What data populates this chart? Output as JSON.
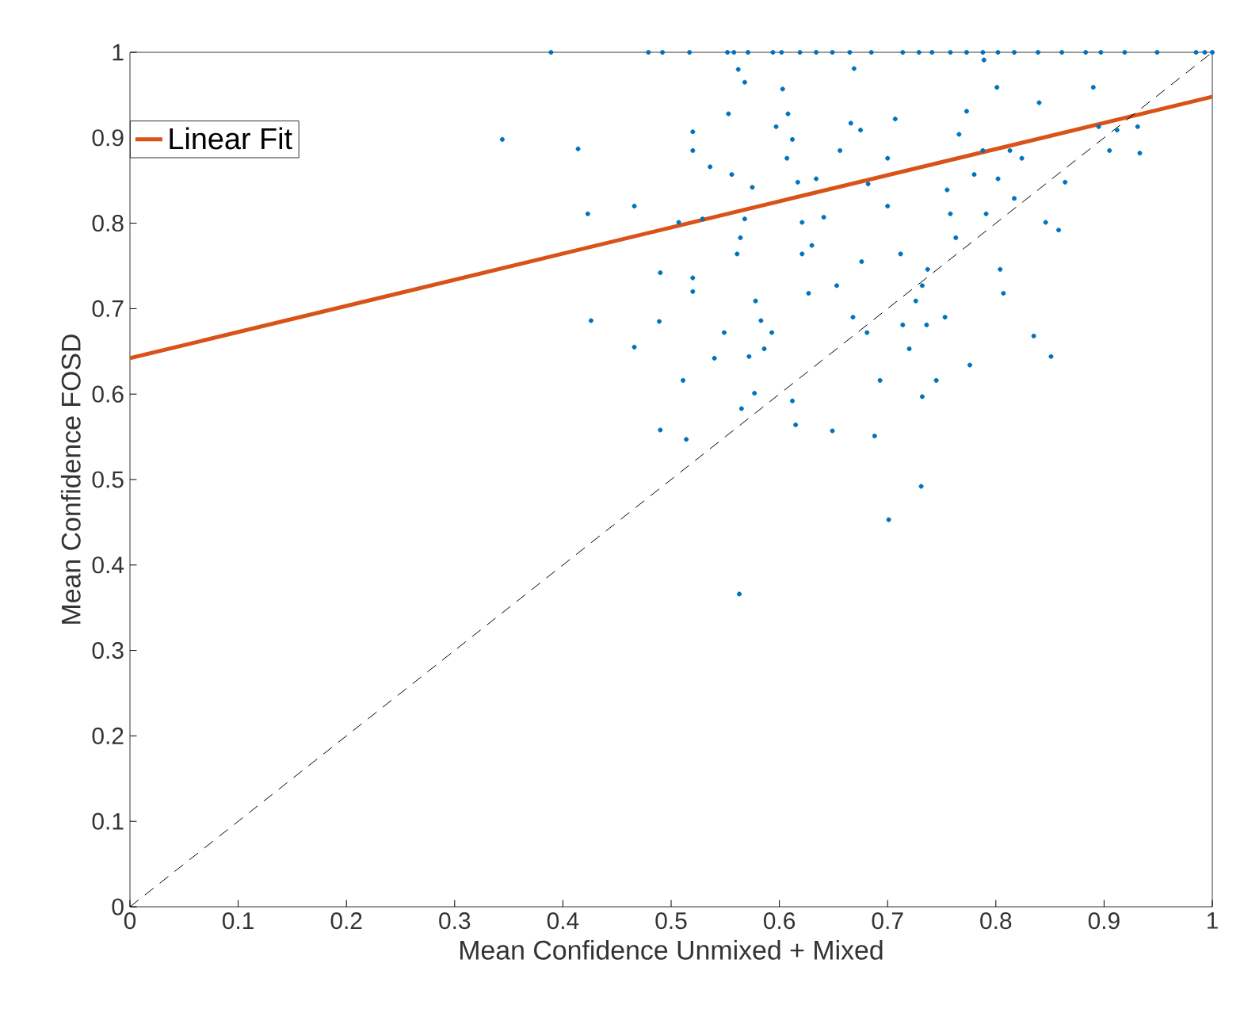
{
  "chart_data": {
    "type": "scatter",
    "xlabel": "Mean Confidence Unmixed + Mixed",
    "ylabel": "Mean Confidence FOSD",
    "xlim": [
      0,
      1
    ],
    "ylim": [
      0,
      1
    ],
    "xticks": [
      0,
      0.1,
      0.2,
      0.3,
      0.4,
      0.5,
      0.6,
      0.7,
      0.8,
      0.9,
      1
    ],
    "yticks": [
      0,
      0.1,
      0.2,
      0.3,
      0.4,
      0.5,
      0.6,
      0.7,
      0.8,
      0.9,
      1
    ],
    "grid": false,
    "legend": "top left",
    "series": [
      {
        "color": "#0072bd",
        "marker": "circle",
        "x": [
          0.389,
          0.479,
          0.492,
          0.517,
          0.552,
          0.558,
          0.571,
          0.594,
          0.602,
          0.619,
          0.634,
          0.649,
          0.665,
          0.685,
          0.714,
          0.729,
          0.741,
          0.758,
          0.773,
          0.788,
          0.802,
          0.817,
          0.839,
          0.861,
          0.883,
          0.897,
          0.919,
          0.949,
          0.985,
          0.993,
          1.0,
          0.344,
          0.414,
          0.423,
          0.426,
          0.466,
          0.466,
          0.489,
          0.49,
          0.49,
          0.507,
          0.511,
          0.514,
          0.52,
          0.52,
          0.52,
          0.52,
          0.529,
          0.536,
          0.54,
          0.549,
          0.562,
          0.553,
          0.568,
          0.556,
          0.561,
          0.564,
          0.568,
          0.575,
          0.572,
          0.565,
          0.577,
          0.578,
          0.583,
          0.586,
          0.593,
          0.597,
          0.603,
          0.608,
          0.607,
          0.612,
          0.617,
          0.621,
          0.621,
          0.627,
          0.615,
          0.612,
          0.63,
          0.634,
          0.641,
          0.653,
          0.649,
          0.656,
          0.669,
          0.666,
          0.675,
          0.682,
          0.676,
          0.668,
          0.681,
          0.688,
          0.693,
          0.7,
          0.7,
          0.707,
          0.712,
          0.714,
          0.72,
          0.726,
          0.732,
          0.732,
          0.736,
          0.731,
          0.701,
          0.563,
          0.745,
          0.753,
          0.755,
          0.758,
          0.763,
          0.766,
          0.773,
          0.78,
          0.788,
          0.789,
          0.791,
          0.801,
          0.802,
          0.807,
          0.817,
          0.824,
          0.835,
          0.84,
          0.846,
          0.851,
          0.858,
          0.864,
          0.89,
          0.895,
          0.905,
          0.912,
          0.931,
          0.933,
          0.813,
          0.804,
          0.776,
          0.737
        ],
        "values": [
          1,
          1,
          1,
          1,
          1,
          1,
          1,
          1,
          1,
          1,
          1,
          1,
          1,
          1,
          1,
          1,
          1,
          1,
          1,
          1,
          1,
          1,
          1,
          1,
          1,
          1,
          1,
          1,
          1,
          1,
          1,
          0.898,
          0.887,
          0.811,
          0.686,
          0.82,
          0.655,
          0.685,
          0.742,
          0.558,
          0.801,
          0.616,
          0.547,
          0.736,
          0.72,
          0.907,
          0.885,
          0.805,
          0.866,
          0.642,
          0.672,
          0.98,
          0.928,
          0.965,
          0.857,
          0.764,
          0.783,
          0.805,
          0.842,
          0.644,
          0.583,
          0.601,
          0.709,
          0.686,
          0.653,
          0.672,
          0.913,
          0.957,
          0.928,
          0.876,
          0.898,
          0.848,
          0.801,
          0.764,
          0.718,
          0.564,
          0.592,
          0.774,
          0.852,
          0.807,
          0.727,
          0.557,
          0.885,
          0.981,
          0.917,
          0.909,
          0.846,
          0.755,
          0.69,
          0.672,
          0.551,
          0.616,
          0.876,
          0.82,
          0.922,
          0.764,
          0.681,
          0.653,
          0.709,
          0.727,
          0.597,
          0.681,
          0.492,
          0.453,
          0.366,
          0.616,
          0.69,
          0.839,
          0.811,
          0.783,
          0.904,
          0.931,
          0.857,
          0.885,
          0.991,
          0.811,
          0.959,
          0.852,
          0.718,
          0.829,
          0.876,
          0.668,
          0.941,
          0.801,
          0.644,
          0.792,
          0.848,
          0.959,
          0.913,
          0.885,
          0.909,
          0.913,
          0.882,
          0.885,
          0.746,
          0.634,
          0.746
        ]
      },
      {
        "type": "line",
        "name": "Linear Fit",
        "color": "#d95319",
        "marker": "none",
        "line_style": "solid",
        "x": [
          0,
          1
        ],
        "values": [
          0.642,
          0.948
        ]
      },
      {
        "type": "line",
        "color": "#000000",
        "marker": "none",
        "line_style": "dashed",
        "x": [
          0,
          1
        ],
        "values": [
          0,
          1
        ]
      }
    ]
  }
}
